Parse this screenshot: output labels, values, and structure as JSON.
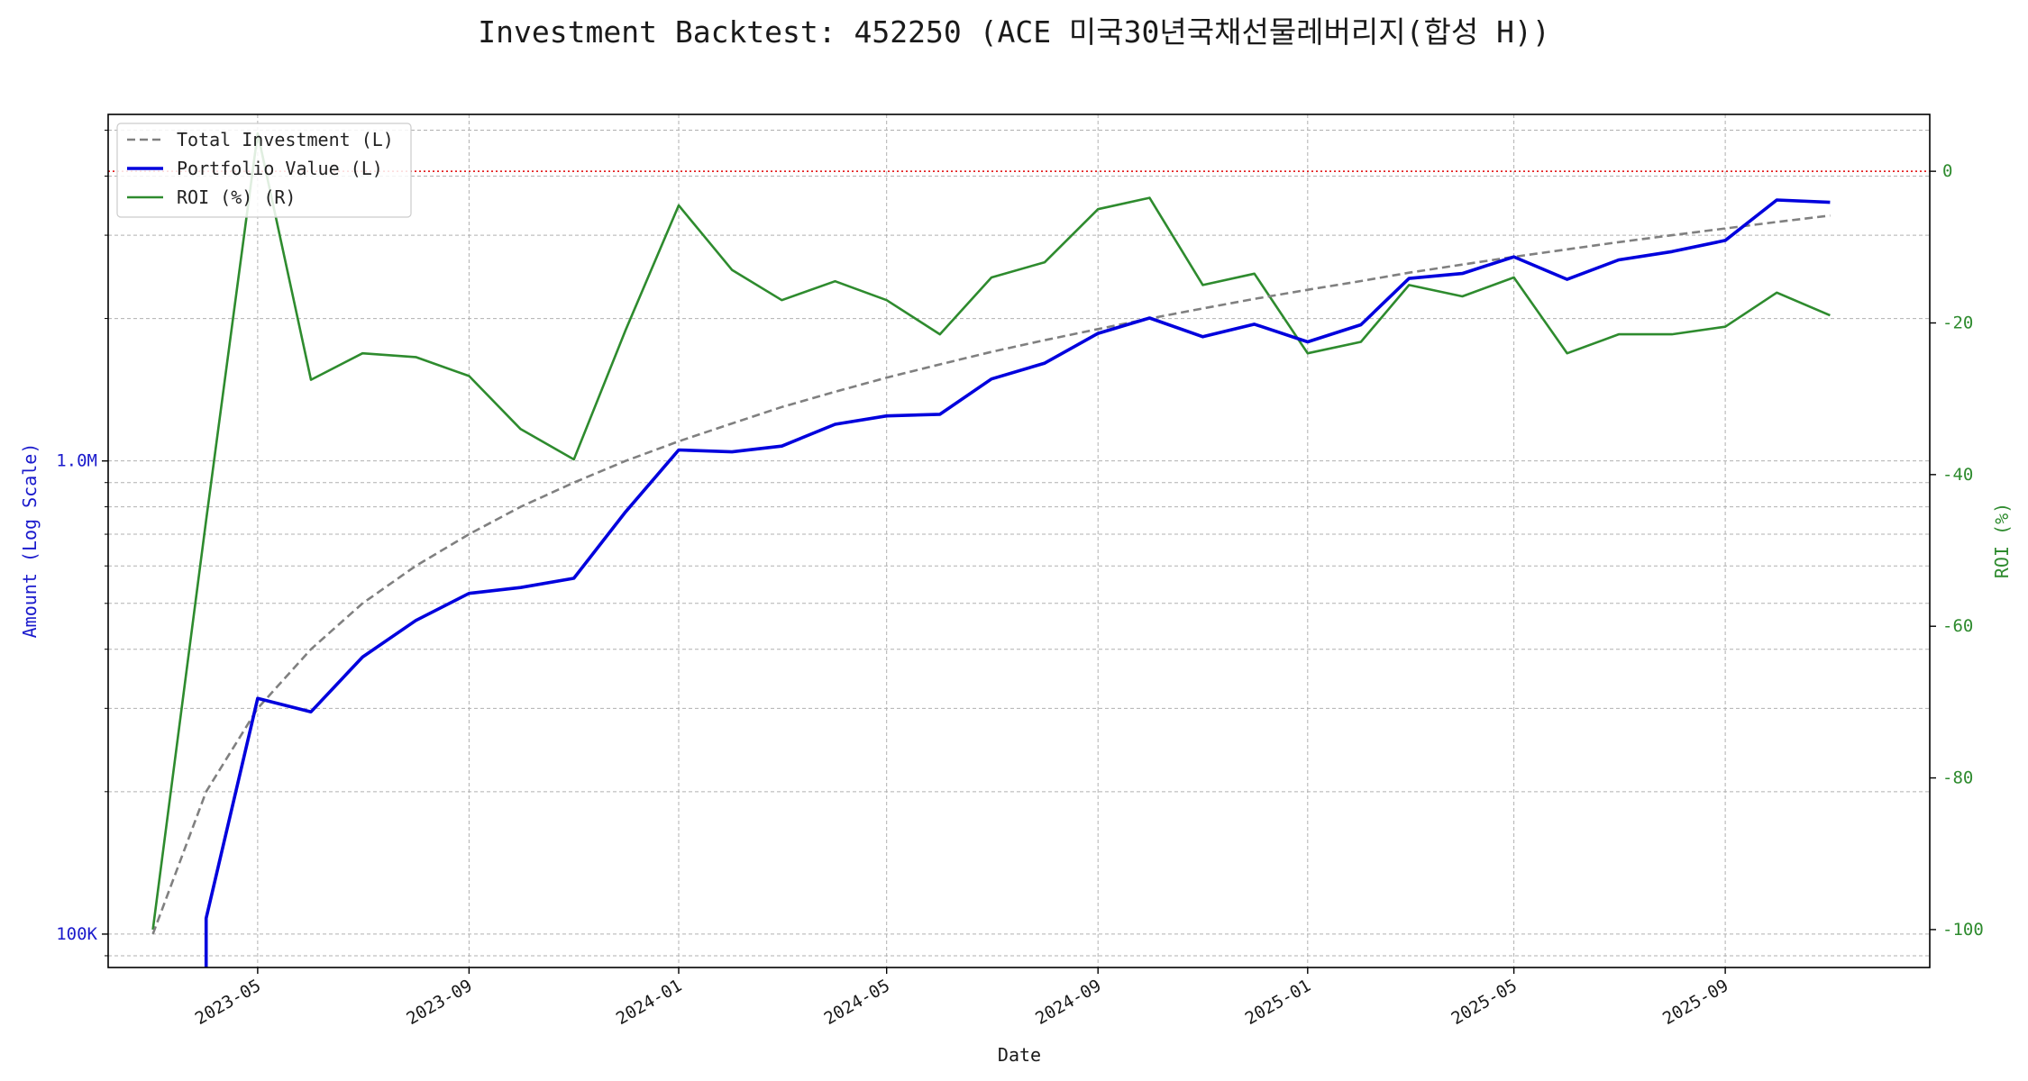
{
  "colors": {
    "investment": "#808080",
    "portfolio": "#0000dd",
    "roi": "#2e8b2e",
    "zero_line": "#e00000",
    "left_axis": "#1a1acc",
    "right_axis": "#2e8b2e",
    "grid": "#b0b0b0"
  },
  "chart_data": {
    "type": "line",
    "title": "Investment Backtest: 452250 (ACE 미국30년국채선물레버리지(합성 H))",
    "xlabel": "Date",
    "ylabel_left": "Amount (Log Scale)",
    "ylabel_right": "ROI (%)",
    "y_left_scale": "log",
    "y_left_lim": [
      85000,
      5400000
    ],
    "y_right_lim": [
      -105,
      7.5
    ],
    "x_lim": [
      "2023-02-03",
      "2025-12-29"
    ],
    "grid": true,
    "legend_position": "upper-left",
    "x_ticks": [
      "2023-05",
      "2023-09",
      "2024-01",
      "2024-05",
      "2024-09",
      "2025-01",
      "2025-05",
      "2025-09"
    ],
    "y_left_ticks": [
      {
        "value": 100000,
        "label": "100K"
      },
      {
        "value": 1000000,
        "label": "1.0M"
      }
    ],
    "y_right_ticks": [
      0,
      -20,
      -40,
      -60,
      -80,
      -100
    ],
    "reference_line": {
      "axis": "right",
      "value": 0
    },
    "x": [
      "2023-03-01",
      "2023-04-01",
      "2023-05-01",
      "2023-06-01",
      "2023-07-01",
      "2023-08-01",
      "2023-09-01",
      "2023-10-01",
      "2023-11-01",
      "2023-12-01",
      "2024-01-01",
      "2024-02-01",
      "2024-03-01",
      "2024-04-01",
      "2024-05-01",
      "2024-06-01",
      "2024-07-01",
      "2024-08-01",
      "2024-09-01",
      "2024-10-01",
      "2024-11-01",
      "2024-12-01",
      "2025-01-01",
      "2025-02-01",
      "2025-03-01",
      "2025-04-01",
      "2025-05-01",
      "2025-06-01",
      "2025-07-01",
      "2025-08-01",
      "2025-09-01",
      "2025-10-01",
      "2025-11-01"
    ],
    "series": [
      {
        "name": "Total Investment (L)",
        "axis": "left",
        "style": "dashed",
        "values": [
          100000,
          200000,
          300000,
          400000,
          500000,
          600000,
          700000,
          800000,
          900000,
          1000000,
          1100000,
          1200000,
          1300000,
          1400000,
          1500000,
          1600000,
          1700000,
          1800000,
          1900000,
          2000000,
          2100000,
          2200000,
          2300000,
          2400000,
          2500000,
          2600000,
          2700000,
          2800000,
          2900000,
          3000000,
          3100000,
          3200000,
          3300000
        ]
      },
      {
        "name": "Portfolio Value (L)",
        "axis": "left",
        "style": "solid-thick",
        "values": [
          null,
          108000,
          315000,
          295000,
          385000,
          460000,
          525000,
          540000,
          565000,
          780000,
          1055000,
          1045000,
          1075000,
          1195000,
          1245000,
          1255000,
          1490000,
          1610000,
          1860000,
          2005000,
          1830000,
          1945000,
          1785000,
          1940000,
          2430000,
          2490000,
          2700000,
          2420000,
          2660000,
          2770000,
          2925000,
          3560000,
          3520000
        ]
      },
      {
        "name": "ROI (%) (R)",
        "axis": "right",
        "style": "solid",
        "values": [
          -100,
          -46,
          5,
          -27.5,
          -24,
          -24.5,
          -27,
          -34,
          -38,
          -21,
          -4.5,
          -13,
          -17,
          -14.5,
          -17,
          -21.5,
          -14,
          -12,
          -5,
          -3.5,
          -15,
          -13.5,
          -24,
          -22.5,
          -15,
          -16.5,
          -14,
          -24,
          -21.5,
          -21.5,
          -20.5,
          -16,
          -19
        ]
      }
    ]
  }
}
